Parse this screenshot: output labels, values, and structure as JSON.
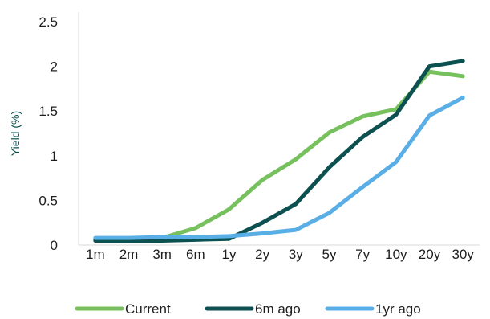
{
  "chart_data": {
    "type": "line",
    "title": "",
    "xlabel": "",
    "ylabel": "Yield (%)",
    "categories": [
      "1m",
      "2m",
      "3m",
      "6m",
      "1y",
      "2y",
      "3y",
      "5y",
      "7y",
      "10y",
      "20y",
      "30y"
    ],
    "ylim": [
      0,
      2.5
    ],
    "yticks": [
      0,
      0.5,
      1,
      1.5,
      2,
      2.5
    ],
    "ytick_labels": [
      "0",
      "0.5",
      "1",
      "1.5",
      "2",
      "2.5"
    ],
    "grid": false,
    "legend_position": "bottom",
    "series": [
      {
        "name": "Current",
        "color": "#76c05e",
        "values": [
          0.07,
          0.07,
          0.08,
          0.19,
          0.4,
          0.73,
          0.96,
          1.26,
          1.44,
          1.52,
          1.94,
          1.89
        ]
      },
      {
        "name": "6m ago",
        "color": "#0d5050",
        "values": [
          0.05,
          0.05,
          0.05,
          0.06,
          0.07,
          0.25,
          0.46,
          0.87,
          1.21,
          1.46,
          2.0,
          2.06
        ]
      },
      {
        "name": "1yr ago",
        "color": "#5aaee6",
        "values": [
          0.08,
          0.08,
          0.09,
          0.09,
          0.1,
          0.13,
          0.17,
          0.36,
          0.65,
          0.93,
          1.45,
          1.65
        ]
      }
    ],
    "ylabel_color": "#0d5050"
  }
}
